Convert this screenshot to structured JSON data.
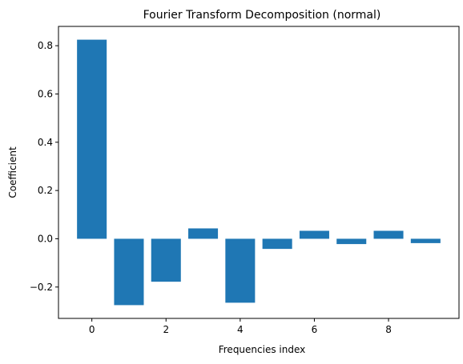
{
  "chart_data": {
    "type": "bar",
    "title": "Fourier Transform Decomposition (normal)",
    "xlabel": "Frequencies index",
    "ylabel": "Coefficient",
    "x": [
      0,
      1,
      2,
      3,
      4,
      5,
      6,
      7,
      8,
      9
    ],
    "values": [
      0.825,
      -0.275,
      -0.178,
      0.043,
      -0.265,
      -0.042,
      0.033,
      -0.022,
      0.033,
      -0.018
    ],
    "xlim": [
      -0.9,
      9.9
    ],
    "ylim": [
      -0.33,
      0.88
    ],
    "xticks": [
      0,
      2,
      4,
      6,
      8
    ],
    "xtick_labels": [
      "0",
      "2",
      "4",
      "6",
      "8"
    ],
    "yticks": [
      -0.2,
      0.0,
      0.2,
      0.4,
      0.6,
      0.8
    ],
    "ytick_labels": [
      "−0.2",
      "0.0",
      "0.2",
      "0.4",
      "0.6",
      "0.8"
    ],
    "bar_color": "#1f77b4",
    "grid": false,
    "legend": "none"
  }
}
